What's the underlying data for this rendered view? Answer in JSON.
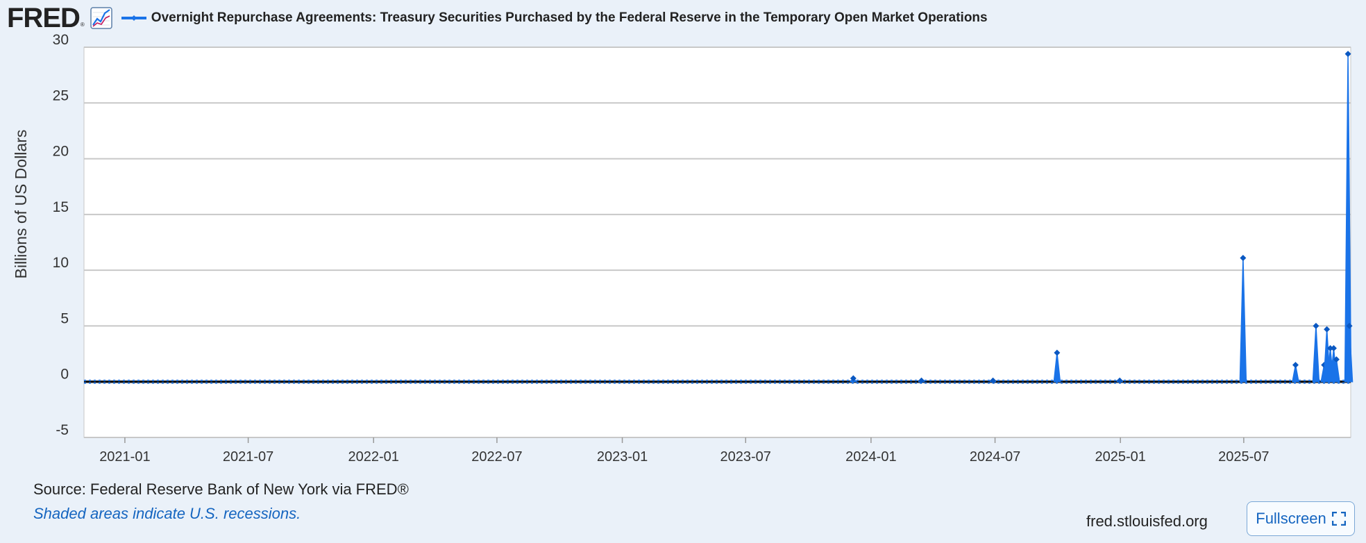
{
  "header": {
    "logo_text": "FRED",
    "logo_reg": "®",
    "title": "Overnight Repurchase Agreements: Treasury Securities Purchased by the Federal Reserve in the Temporary Open Market Operations"
  },
  "footer": {
    "source": "Source: Federal Reserve Bank of New York via FRED®",
    "recession_note": "Shaded areas indicate U.S. recessions.",
    "site_url": "fred.stlouisfed.org",
    "fullscreen_label": "Fullscreen"
  },
  "colors": {
    "series": "#1a73e8",
    "series_dark": "#0a58c2",
    "background": "#eaf1f9",
    "plot_bg": "#ffffff",
    "grid": "#c8c8c8",
    "zero_line": "#111111",
    "accent_link": "#1565c0"
  },
  "chart_data": {
    "type": "area",
    "title": "Overnight Repurchase Agreements: Treasury Securities Purchased by the Federal Reserve in the Temporary Open Market Operations",
    "ylabel": "Billions of US Dollars",
    "xlabel": "",
    "ylim": [
      -5,
      30
    ],
    "xlim": [
      "2020-11-02",
      "2025-12-05"
    ],
    "yticks": [
      -5,
      0,
      5,
      10,
      15,
      20,
      25,
      30
    ],
    "xticks": [
      "2021-01",
      "2021-07",
      "2022-01",
      "2022-07",
      "2023-01",
      "2023-07",
      "2024-01",
      "2024-07",
      "2025-01",
      "2025-07"
    ],
    "grid": true,
    "legend": "top-left",
    "series": [
      {
        "name": "Overnight Repurchase Agreements: Treasury Securities Purchased by the Federal Reserve in the Temporary Open Market Operations",
        "baseline": 0,
        "points": [
          {
            "x": "2023-12-06",
            "y": 0.3
          },
          {
            "x": "2024-03-15",
            "y": 0.1
          },
          {
            "x": "2024-06-28",
            "y": 0.1
          },
          {
            "x": "2024-09-30",
            "y": 2.6
          },
          {
            "x": "2024-12-31",
            "y": 0.1
          },
          {
            "x": "2025-06-30",
            "y": 11.1
          },
          {
            "x": "2025-09-15",
            "y": 1.5
          },
          {
            "x": "2025-10-15",
            "y": 5.0
          },
          {
            "x": "2025-10-27",
            "y": 1.5
          },
          {
            "x": "2025-10-31",
            "y": 4.7
          },
          {
            "x": "2025-11-05",
            "y": 3.0
          },
          {
            "x": "2025-11-10",
            "y": 3.0
          },
          {
            "x": "2025-11-14",
            "y": 2.0
          },
          {
            "x": "2025-12-01",
            "y": 29.4
          },
          {
            "x": "2025-12-03",
            "y": 5.0
          }
        ]
      }
    ]
  }
}
